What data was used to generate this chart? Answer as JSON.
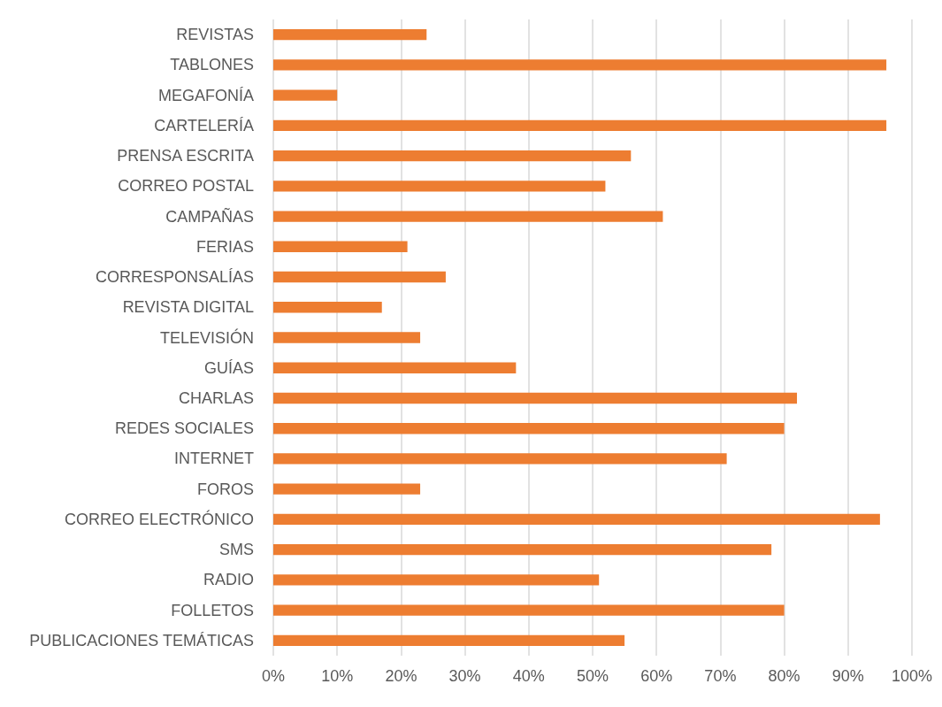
{
  "chart_data": {
    "type": "bar",
    "orientation": "horizontal",
    "categories": [
      "REVISTAS",
      "TABLONES",
      "MEGAFONÍA",
      "CARTELERÍA",
      "PRENSA ESCRITA",
      "CORREO POSTAL",
      "CAMPAÑAS",
      "FERIAS",
      "CORRESPONSALÍAS",
      "REVISTA DIGITAL",
      "TELEVISIÓN",
      "GUÍAS",
      "CHARLAS",
      "REDES SOCIALES",
      "INTERNET",
      "FOROS",
      "CORREO ELECTRÓNICO",
      "SMS",
      "RADIO",
      "FOLLETOS",
      "PUBLICACIONES TEMÁTICAS"
    ],
    "values": [
      24,
      96,
      10,
      96,
      56,
      52,
      61,
      21,
      27,
      17,
      23,
      38,
      82,
      80,
      71,
      23,
      95,
      78,
      51,
      80,
      55
    ],
    "color": "#ed7d31",
    "xlim": [
      0,
      100
    ],
    "xticks": [
      {
        "value": 0,
        "label": "0%"
      },
      {
        "value": 10,
        "label": "10%"
      },
      {
        "value": 20,
        "label": "20%"
      },
      {
        "value": 30,
        "label": "30%"
      },
      {
        "value": 40,
        "label": "40%"
      },
      {
        "value": 50,
        "label": "50%"
      },
      {
        "value": 60,
        "label": "60%"
      },
      {
        "value": 70,
        "label": "70%"
      },
      {
        "value": 80,
        "label": "80%"
      },
      {
        "value": 90,
        "label": "90%"
      },
      {
        "value": 100,
        "label": "100%"
      }
    ],
    "grid": "x"
  }
}
